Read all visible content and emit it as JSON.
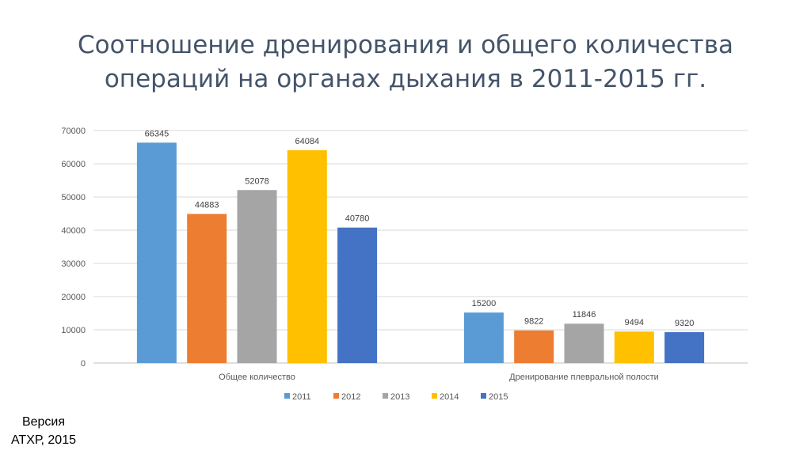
{
  "slide": {
    "title_line1": "Соотношение дренирования и общего количества",
    "title_line2": "операций на органах дыхания в 2011-2015 гг.",
    "footnote_line1": "Версия",
    "footnote_line2": "АТХР, 2015"
  },
  "chart_data": {
    "type": "bar",
    "categories": [
      "Общее количество",
      "Дренирование плевральной полости"
    ],
    "series": [
      {
        "name": "2011",
        "color": "#5b9bd5",
        "values": [
          66345,
          15200
        ]
      },
      {
        "name": "2012",
        "color": "#ed7d31",
        "values": [
          44883,
          9822
        ]
      },
      {
        "name": "2013",
        "color": "#a5a5a5",
        "values": [
          52078,
          11846
        ]
      },
      {
        "name": "2014",
        "color": "#ffc000",
        "values": [
          64084,
          9494
        ]
      },
      {
        "name": "2015",
        "color": "#4472c4",
        "values": [
          40780,
          9320
        ]
      }
    ],
    "title": "",
    "xlabel": "",
    "ylabel": "",
    "ylim": [
      0,
      70000
    ],
    "yticks": [
      0,
      10000,
      20000,
      30000,
      40000,
      50000,
      60000,
      70000
    ],
    "grid": true,
    "legend_position": "bottom",
    "data_labels": true
  }
}
